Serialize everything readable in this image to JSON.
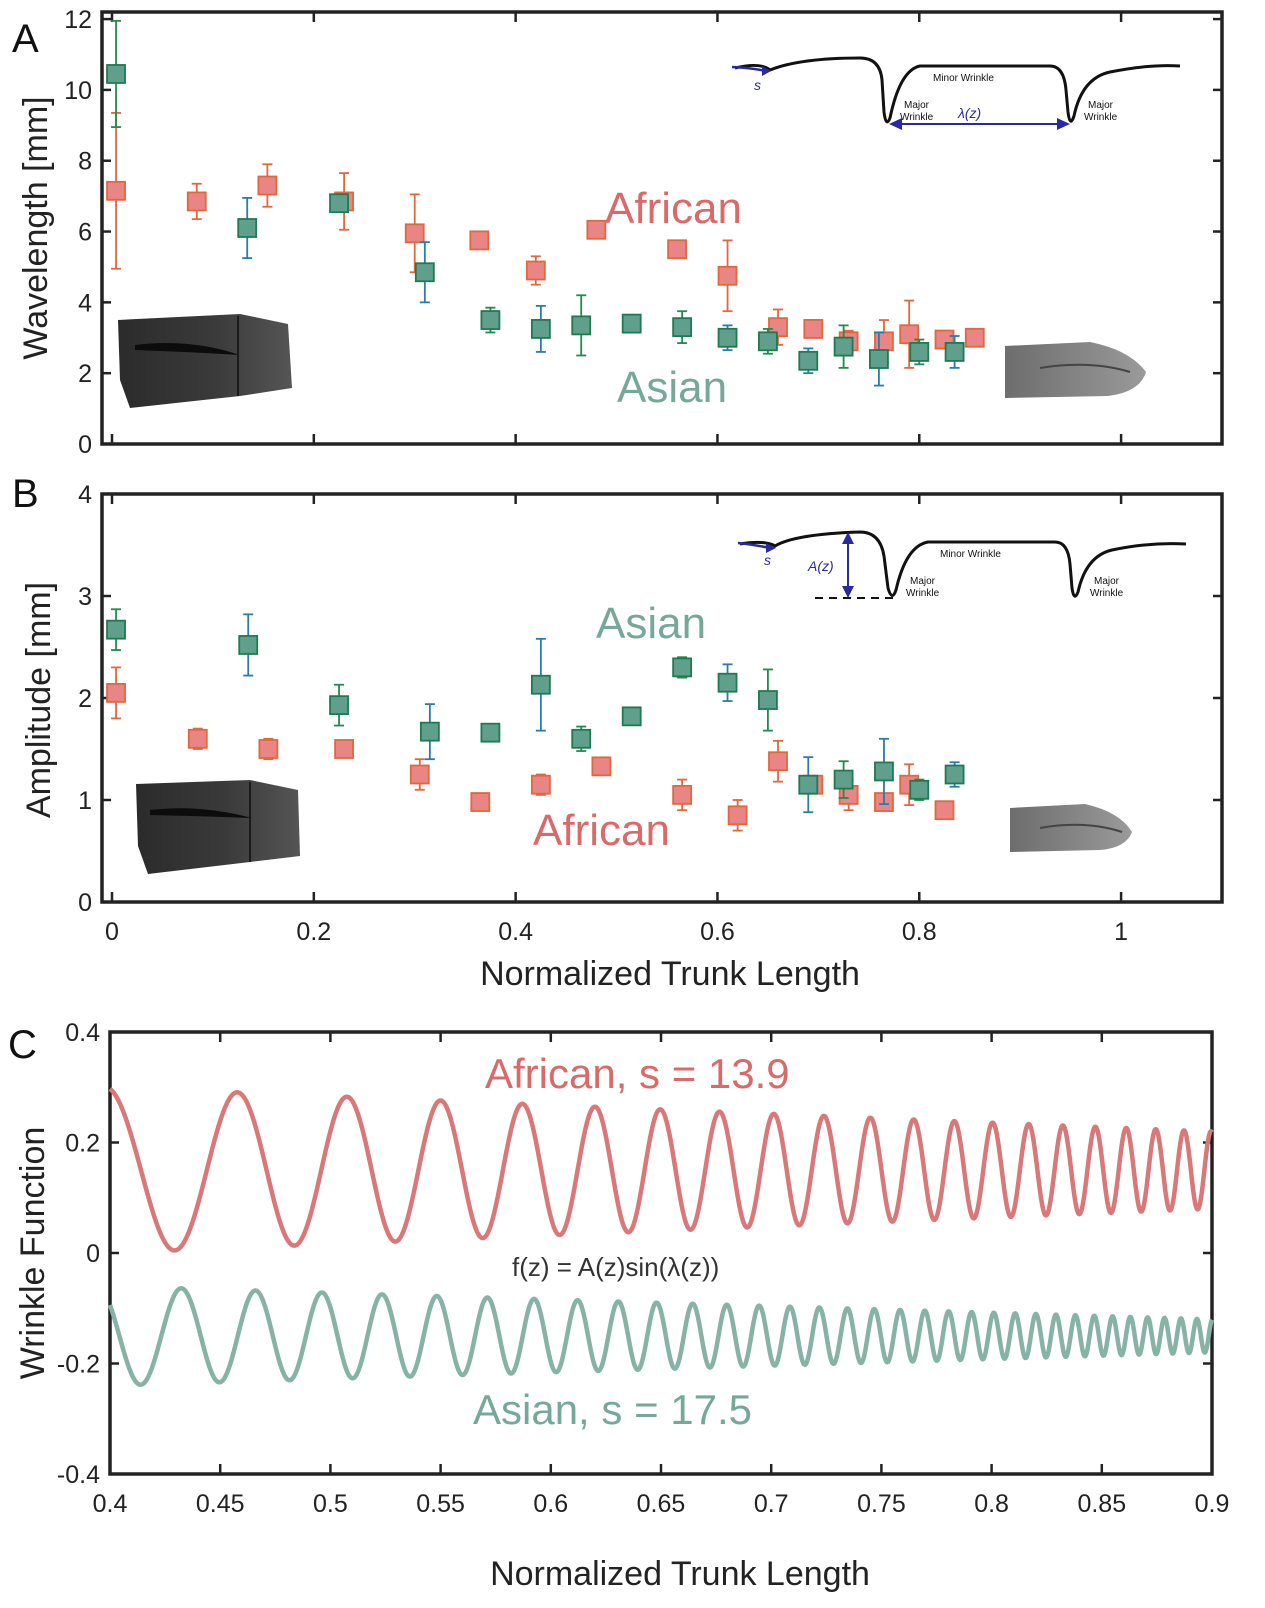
{
  "colors": {
    "african_fill": "#e88585",
    "african_edge": "#e2673c",
    "african_err": "#e2673c",
    "asian_fill": "#5f9f8c",
    "asian_edge": "#1f7a52",
    "asian_err_a": "#2a7ca8",
    "asian_err_b": "#238a4f",
    "african_line": "#d97878",
    "asian_line": "#86b3a6",
    "african_text": "#d86a6a",
    "asian_text": "#76a89a",
    "inset_blue": "#2a2aa0"
  },
  "chart_data": [
    {
      "panel": "A",
      "type": "scatter",
      "ylabel": "Wavelength [mm]",
      "xlabel": "",
      "xlim": [
        0,
        1.1
      ],
      "ylim": [
        0,
        12.2
      ],
      "xticks": [
        0,
        0.2,
        0.4,
        0.6,
        0.8,
        1
      ],
      "xtick_labels": [],
      "yticks": [
        0,
        2,
        4,
        6,
        8,
        10,
        12
      ],
      "ytick_labels": [
        "0",
        "2",
        "4",
        "6",
        "8",
        "10",
        "12"
      ],
      "grid": false,
      "labels": [
        {
          "text": "African",
          "series": "african"
        },
        {
          "text": "Asian",
          "series": "asian"
        }
      ],
      "series": [
        {
          "name": "African",
          "key": "african",
          "points": [
            [
              0.004,
              7.15,
              2.2
            ],
            [
              0.084,
              6.85,
              0.5
            ],
            [
              0.154,
              7.3,
              0.6
            ],
            [
              0.23,
              6.85,
              0.8
            ],
            [
              0.3,
              5.95,
              1.1
            ],
            [
              0.364,
              5.75,
              0.15
            ],
            [
              0.42,
              4.9,
              0.4
            ],
            [
              0.48,
              6.05,
              0.15
            ],
            [
              0.56,
              5.5,
              0.2
            ],
            [
              0.61,
              4.75,
              1.0
            ],
            [
              0.66,
              3.3,
              0.5
            ],
            [
              0.695,
              3.25,
              0.2
            ],
            [
              0.73,
              2.9,
              0.3
            ],
            [
              0.765,
              2.9,
              0.6
            ],
            [
              0.79,
              3.1,
              0.95
            ],
            [
              0.825,
              2.95,
              0.2
            ],
            [
              0.855,
              3.0,
              0.15
            ]
          ]
        },
        {
          "name": "Asian",
          "key": "asian",
          "points": [
            [
              0.004,
              10.45,
              1.5
            ],
            [
              0.134,
              6.1,
              0.85
            ],
            [
              0.225,
              6.8,
              0.2
            ],
            [
              0.31,
              4.85,
              0.85
            ],
            [
              0.375,
              3.5,
              0.35
            ],
            [
              0.425,
              3.25,
              0.65
            ],
            [
              0.465,
              3.35,
              0.85
            ],
            [
              0.515,
              3.4,
              0.2
            ],
            [
              0.565,
              3.3,
              0.45
            ],
            [
              0.61,
              3.0,
              0.35
            ],
            [
              0.65,
              2.9,
              0.35
            ],
            [
              0.69,
              2.35,
              0.35
            ],
            [
              0.725,
              2.75,
              0.6
            ],
            [
              0.76,
              2.4,
              0.75
            ],
            [
              0.8,
              2.6,
              0.35
            ],
            [
              0.835,
              2.6,
              0.45
            ]
          ]
        }
      ]
    },
    {
      "panel": "B",
      "type": "scatter",
      "ylabel": "Amplitude [mm]",
      "xlabel": "Normalized Trunk Length",
      "xlim": [
        0,
        1.1
      ],
      "ylim": [
        0,
        4
      ],
      "xticks": [
        0,
        0.2,
        0.4,
        0.6,
        0.8,
        1
      ],
      "xtick_labels": [
        "0",
        "0.2",
        "0.4",
        "0.6",
        "0.8",
        "1"
      ],
      "yticks": [
        0,
        1,
        2,
        3,
        4
      ],
      "ytick_labels": [
        "0",
        "1",
        "2",
        "3",
        "4"
      ],
      "grid": false,
      "labels": [
        {
          "text": "Asian",
          "series": "asian"
        },
        {
          "text": "African",
          "series": "african"
        }
      ],
      "series": [
        {
          "name": "African",
          "key": "african",
          "points": [
            [
              0.004,
              2.05,
              0.25
            ],
            [
              0.085,
              1.6,
              0.1
            ],
            [
              0.155,
              1.5,
              0.1
            ],
            [
              0.23,
              1.5,
              0.05
            ],
            [
              0.305,
              1.25,
              0.15
            ],
            [
              0.365,
              0.98,
              0.05
            ],
            [
              0.425,
              1.15,
              0.1
            ],
            [
              0.485,
              1.33,
              0.03
            ],
            [
              0.565,
              1.05,
              0.15
            ],
            [
              0.62,
              0.85,
              0.15
            ],
            [
              0.66,
              1.38,
              0.2
            ],
            [
              0.695,
              1.15,
              0.05
            ],
            [
              0.73,
              1.05,
              0.15
            ],
            [
              0.765,
              0.98,
              0.05
            ],
            [
              0.79,
              1.15,
              0.2
            ],
            [
              0.825,
              0.9,
              0.05
            ]
          ]
        },
        {
          "name": "Asian",
          "key": "asian",
          "points": [
            [
              0.004,
              2.67,
              0.2
            ],
            [
              0.135,
              2.52,
              0.3
            ],
            [
              0.225,
              1.93,
              0.2
            ],
            [
              0.315,
              1.67,
              0.27
            ],
            [
              0.375,
              1.66,
              0.05
            ],
            [
              0.425,
              2.13,
              0.45
            ],
            [
              0.465,
              1.6,
              0.12
            ],
            [
              0.515,
              1.82,
              0.05
            ],
            [
              0.565,
              2.3,
              0.1
            ],
            [
              0.61,
              2.15,
              0.18
            ],
            [
              0.65,
              1.98,
              0.3
            ],
            [
              0.69,
              1.15,
              0.27
            ],
            [
              0.725,
              1.2,
              0.18
            ],
            [
              0.765,
              1.28,
              0.32
            ],
            [
              0.8,
              1.1,
              0.1
            ],
            [
              0.835,
              1.25,
              0.12
            ]
          ]
        }
      ]
    },
    {
      "panel": "C",
      "type": "line",
      "ylabel": "Wrinkle Function",
      "xlabel": "Normalized Trunk Length",
      "xlim": [
        0.4,
        0.9
      ],
      "ylim": [
        -0.4,
        0.4
      ],
      "xticks": [
        0.4,
        0.45,
        0.5,
        0.55,
        0.6,
        0.65,
        0.7,
        0.75,
        0.8,
        0.85,
        0.9
      ],
      "xtick_labels": [
        "0.4",
        "0.45",
        "0.5",
        "0.55",
        "0.6",
        "0.65",
        "0.7",
        "0.75",
        "0.8",
        "0.85",
        "0.9"
      ],
      "yticks": [
        -0.4,
        -0.2,
        0,
        0.2,
        0.4
      ],
      "ytick_labels": [
        "-0.4",
        "-0.2",
        "0",
        "0.2",
        "0.4"
      ],
      "grid": false,
      "formula": "f(z) = A(z)sin(λ(z))",
      "series": [
        {
          "name": "African, s = 13.9",
          "key": "african",
          "offset": 0.15,
          "amp_start": 0.15,
          "amp_end": 0.07,
          "wavelength_start": 0.066,
          "wavelength_end": 0.012,
          "x0": 0.4
        },
        {
          "name": "Asian, s = 17.5",
          "key": "asian",
          "offset": -0.15,
          "amp_start": 0.09,
          "amp_end": 0.03,
          "wavelength_start": 0.04,
          "wavelength_end": 0.007,
          "x0": 0.4
        }
      ]
    }
  ],
  "insets": {
    "minor_wrinkle": "Minor Wrinkle",
    "major_wrinkle_line1": "Major",
    "major_wrinkle_line2": "Wrinkle",
    "s_label": "s",
    "lambda_label": "λ(z)",
    "amp_label": "A(z)"
  }
}
